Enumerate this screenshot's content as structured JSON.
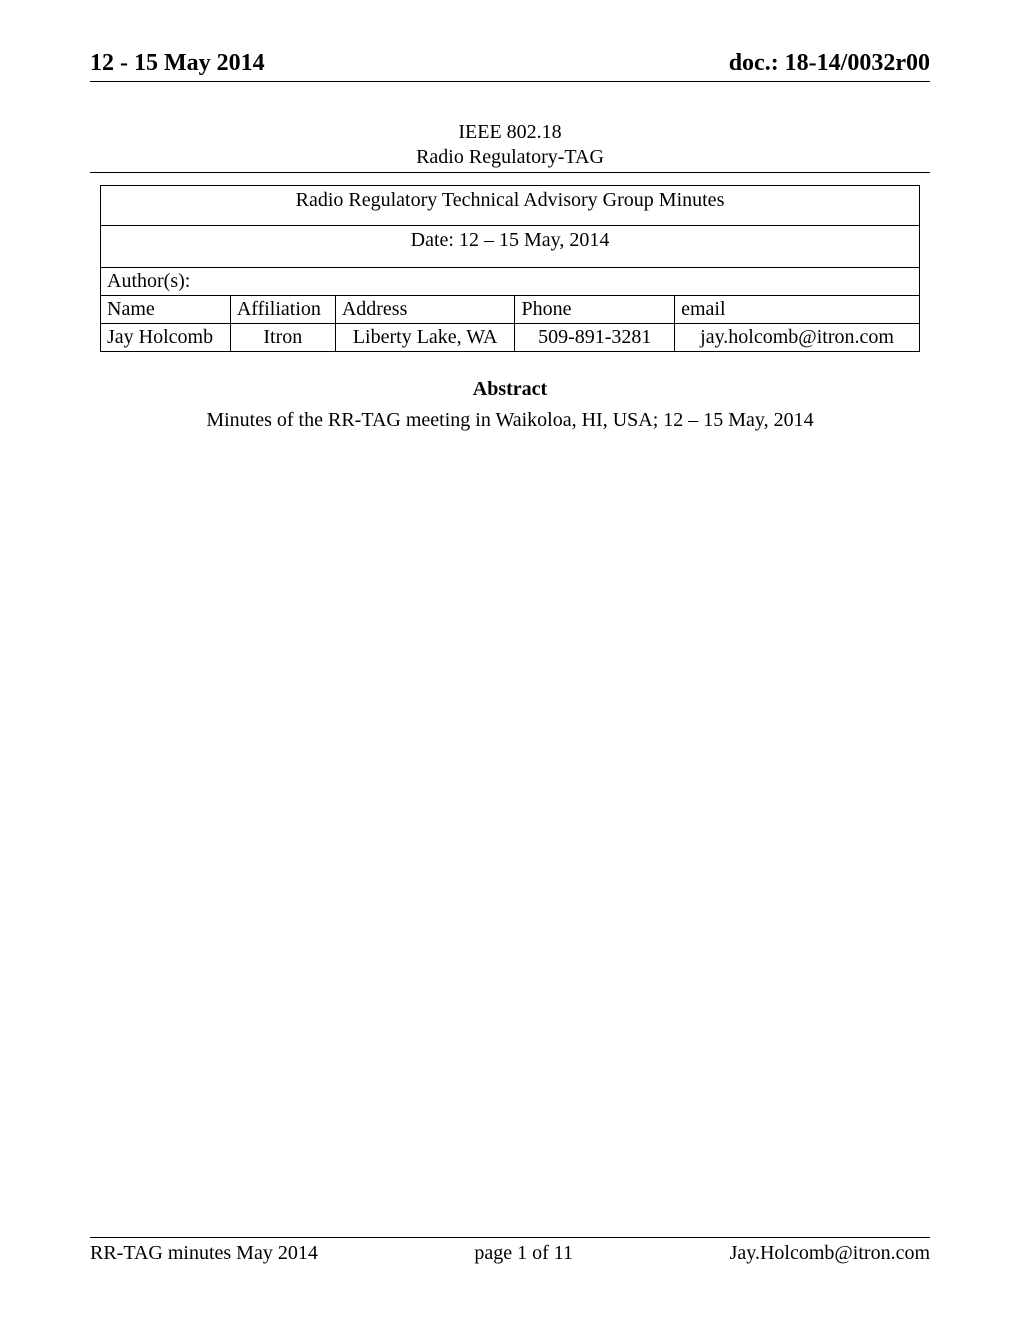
{
  "header": {
    "date_range": "12 - 15 May 2014",
    "doc_number": "doc.: 18-14/0032r00"
  },
  "title_block": {
    "line1": "IEEE 802.18",
    "line2": "Radio Regulatory-TAG"
  },
  "meta_table": {
    "group_title": "Radio Regulatory Technical Advisory Group Minutes",
    "date_line": "Date: 12 – 15 May, 2014",
    "authors_label": "Author(s):",
    "columns": {
      "name": "Name",
      "affiliation": "Affiliation",
      "address": "Address",
      "phone": "Phone",
      "email": "email"
    },
    "row": {
      "name": "Jay Holcomb",
      "affiliation": "Itron",
      "address": "Liberty Lake, WA",
      "phone": "509-891-3281",
      "email": "jay.holcomb@itron.com"
    }
  },
  "abstract": {
    "heading": "Abstract",
    "text": "Minutes of the RR-TAG meeting in Waikoloa, HI, USA; 12 – 15 May, 2014"
  },
  "footer": {
    "left": "RR-TAG minutes May 2014",
    "center": "page 1 of 11",
    "right": "Jay.Holcomb@itron.com"
  }
}
